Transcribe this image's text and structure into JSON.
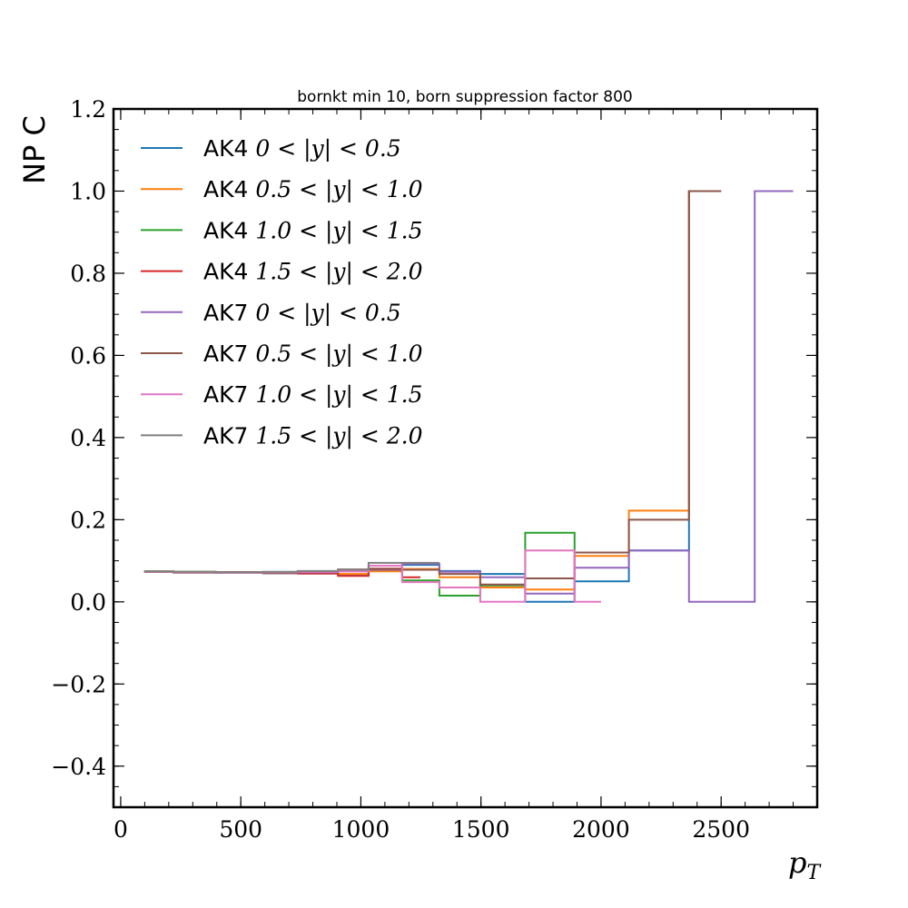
{
  "chart_data": {
    "type": "line",
    "step": "post",
    "title": "bornkt min 10, born suppression factor 800",
    "xlabel": "p",
    "xlabel_sub": "T",
    "ylabel": "NP C",
    "xlim": [
      -30,
      2900
    ],
    "ylim": [
      -0.5,
      1.2
    ],
    "xticks": [
      0,
      500,
      1000,
      1500,
      2000,
      2500
    ],
    "xtick_labels": [
      "0",
      "500",
      "1000",
      "1500",
      "2000",
      "2500"
    ],
    "yticks": [
      -0.4,
      -0.2,
      0.0,
      0.2,
      0.4,
      0.6,
      0.8,
      1.0,
      1.2
    ],
    "ytick_labels": [
      "−0.4",
      "−0.2",
      "0.0",
      "0.2",
      "0.4",
      "0.6",
      "0.8",
      "1.0",
      "1.2"
    ],
    "grid": false,
    "legend_position": "upper-left",
    "series": [
      {
        "name": "AK4",
        "label": "0 < |y| < 0.5",
        "color": "#1f77b4",
        "edges": [
          97,
          220,
          395,
          592,
          737,
          905,
          1032,
          1172,
          1327,
          1497,
          1684,
          1890,
          2116,
          2366,
          2500
        ],
        "values": [
          0.073,
          0.072,
          0.071,
          0.07,
          0.069,
          0.066,
          0.077,
          0.09,
          0.075,
          0.068,
          0.0,
          0.05,
          0.125,
          1.0
        ]
      },
      {
        "name": "AK4",
        "label": "0.5 < |y| < 1.0",
        "color": "#ff7f0e",
        "edges": [
          97,
          220,
          395,
          592,
          737,
          905,
          1032,
          1172,
          1327,
          1497,
          1684,
          1890,
          2116,
          2366,
          2500
        ],
        "values": [
          0.074,
          0.073,
          0.072,
          0.071,
          0.07,
          0.068,
          0.074,
          0.08,
          0.06,
          0.035,
          0.03,
          0.112,
          0.222,
          1.0
        ]
      },
      {
        "name": "AK4",
        "label": "1.0 < |y| < 1.5",
        "color": "#2ca02c",
        "edges": [
          97,
          220,
          395,
          592,
          737,
          905,
          1032,
          1172,
          1327,
          1497,
          1684,
          1890,
          2116
        ],
        "values": [
          0.074,
          0.073,
          0.072,
          0.071,
          0.072,
          0.075,
          0.08,
          0.052,
          0.015,
          0.04,
          0.168,
          0.12
        ]
      },
      {
        "name": "AK4",
        "label": "1.5 < |y| < 2.0",
        "color": "#d62728",
        "edges": [
          97,
          220,
          395,
          592,
          737,
          905,
          1032,
          1172,
          1248
        ],
        "values": [
          0.073,
          0.072,
          0.072,
          0.071,
          0.069,
          0.063,
          0.081,
          0.06
        ]
      },
      {
        "name": "AK7",
        "label": "0 < |y| < 0.5",
        "color": "#9467bd",
        "edges": [
          97,
          220,
          395,
          592,
          737,
          905,
          1032,
          1172,
          1327,
          1497,
          1684,
          1890,
          2116,
          2366,
          2640,
          2800
        ],
        "values": [
          0.073,
          0.072,
          0.071,
          0.07,
          0.072,
          0.074,
          0.078,
          0.093,
          0.073,
          0.06,
          0.02,
          0.083,
          0.125,
          0.0,
          1.0
        ]
      },
      {
        "name": "AK7",
        "label": "0.5 < |y| < 1.0",
        "color": "#8c564b",
        "edges": [
          97,
          220,
          395,
          592,
          737,
          905,
          1032,
          1172,
          1327,
          1497,
          1684,
          1890,
          2116,
          2366,
          2500
        ],
        "values": [
          0.073,
          0.071,
          0.072,
          0.07,
          0.074,
          0.079,
          0.08,
          0.078,
          0.068,
          0.042,
          0.057,
          0.12,
          0.2,
          1.0
        ]
      },
      {
        "name": "AK7",
        "label": "1.0 < |y| < 1.5",
        "color": "#e377c2",
        "edges": [
          97,
          220,
          395,
          592,
          737,
          905,
          1032,
          1172,
          1327,
          1497,
          1684,
          1890,
          2000
        ],
        "values": [
          0.073,
          0.072,
          0.071,
          0.072,
          0.073,
          0.074,
          0.088,
          0.048,
          0.035,
          0.0,
          0.125,
          0.0
        ]
      },
      {
        "name": "AK7",
        "label": "1.5 < |y| < 2.0",
        "color": "#7f7f7f",
        "edges": [
          97,
          220,
          395,
          592,
          737,
          905,
          1032,
          1172,
          1327
        ],
        "values": [
          0.074,
          0.073,
          0.072,
          0.073,
          0.075,
          0.078,
          0.095,
          0.095
        ]
      }
    ]
  }
}
